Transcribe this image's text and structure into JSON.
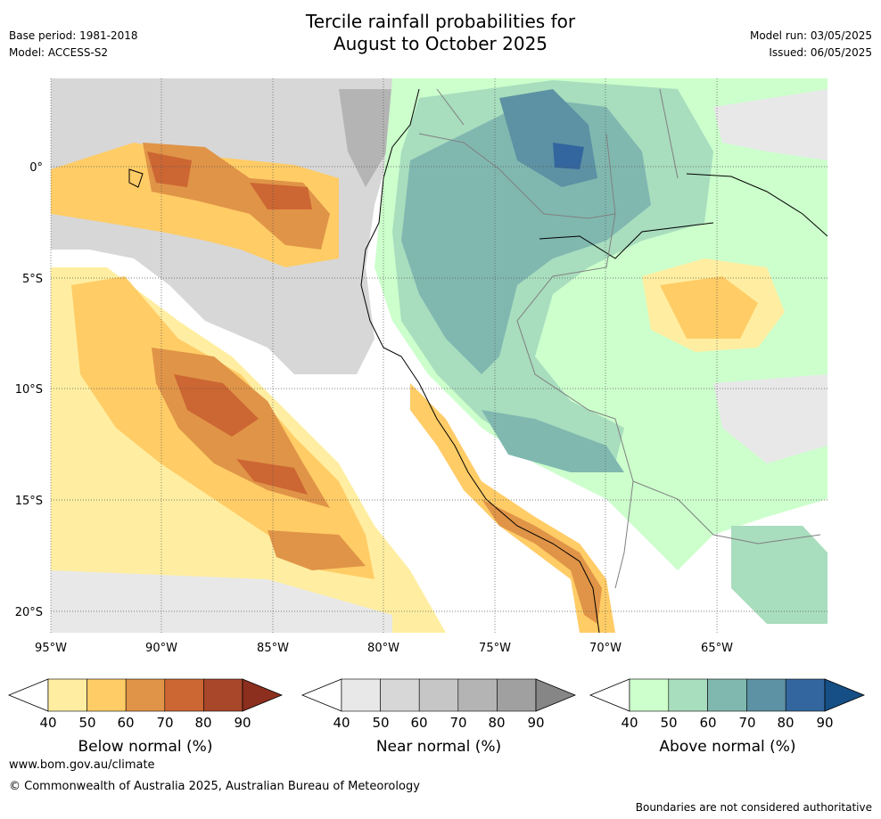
{
  "title": {
    "line1": "Tercile rainfall probabilities for",
    "line2": "August to October 2025"
  },
  "meta": {
    "base_period": "Base period: 1981-2018",
    "model": "Model: ACCESS-S2",
    "model_run": "Model run: 03/05/2025",
    "issued": "Issued: 06/05/2025"
  },
  "map": {
    "lat_labels": [
      "0°",
      "5°S",
      "10°S",
      "15°S",
      "20°S"
    ],
    "lon_labels": [
      "95°W",
      "90°W",
      "85°W",
      "80°W",
      "75°W",
      "70°W",
      "65°W"
    ]
  },
  "colorbars": [
    {
      "label": "Below normal (%)",
      "ticks": [
        "40",
        "50",
        "60",
        "70",
        "80",
        "90"
      ],
      "colors": [
        "#ffeea1",
        "#ffcc66",
        "#e09447",
        "#cc6633",
        "#a8472a",
        "#8c2f1e"
      ]
    },
    {
      "label": "Near normal (%)",
      "ticks": [
        "40",
        "50",
        "60",
        "70",
        "80",
        "90"
      ],
      "colors": [
        "#e8e8e8",
        "#d7d7d7",
        "#c6c6c6",
        "#b4b4b4",
        "#a0a0a0",
        "#868686"
      ]
    },
    {
      "label": "Above normal (%)",
      "ticks": [
        "40",
        "50",
        "60",
        "70",
        "80",
        "90"
      ],
      "colors": [
        "#ccffcc",
        "#a8ddbe",
        "#80b8b0",
        "#5c92a3",
        "#33669e",
        "#154f85"
      ]
    }
  ],
  "footer": {
    "url": "www.bom.gov.au/climate",
    "copyright": "© Commonwealth of Australia 2025, Australian Bureau of Meteorology",
    "disclaimer": "Boundaries are not considered authoritative"
  }
}
